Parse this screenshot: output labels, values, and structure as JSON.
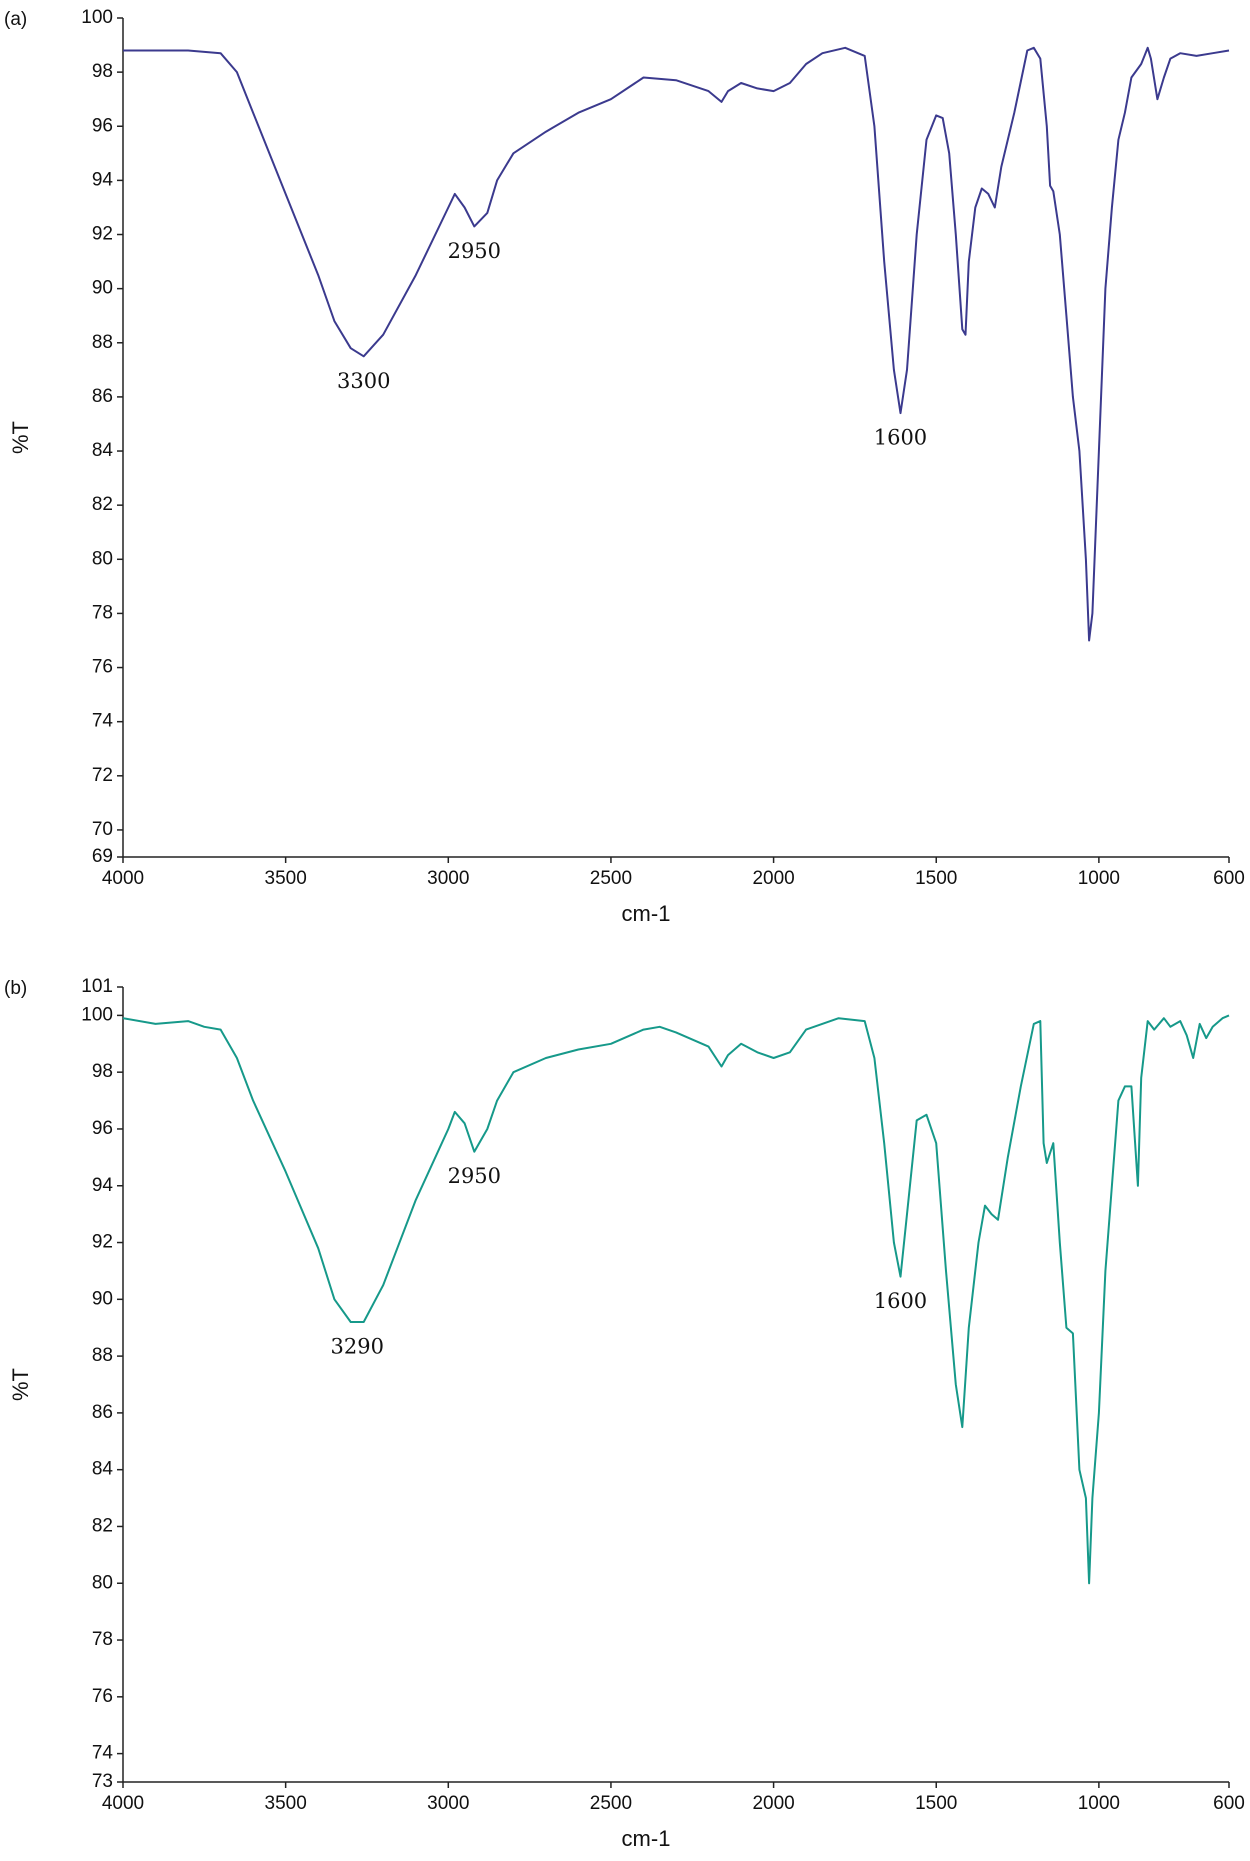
{
  "chart_data": [
    {
      "type": "line",
      "panel": "(a)",
      "ylabel": "%T",
      "xlabel": "cm-1",
      "color": "#3b3a8e",
      "xlim": [
        4000,
        600
      ],
      "xticks": [
        4000,
        3500,
        3000,
        2500,
        2000,
        1500,
        1000,
        600
      ],
      "ylim": [
        69,
        100
      ],
      "yticks": [
        69,
        70,
        72,
        74,
        76,
        78,
        80,
        82,
        84,
        86,
        88,
        90,
        92,
        94,
        96,
        98,
        100
      ],
      "x": [
        4000,
        3800,
        3700,
        3650,
        3600,
        3500,
        3400,
        3350,
        3300,
        3260,
        3200,
        3100,
        3000,
        2980,
        2950,
        2920,
        2880,
        2850,
        2800,
        2700,
        2600,
        2500,
        2400,
        2300,
        2200,
        2160,
        2140,
        2100,
        2050,
        2000,
        1950,
        1900,
        1850,
        1780,
        1720,
        1690,
        1660,
        1630,
        1610,
        1590,
        1560,
        1530,
        1500,
        1480,
        1460,
        1440,
        1420,
        1410,
        1400,
        1380,
        1360,
        1340,
        1320,
        1300,
        1260,
        1220,
        1200,
        1180,
        1160,
        1150,
        1140,
        1120,
        1100,
        1080,
        1060,
        1040,
        1030,
        1020,
        1000,
        980,
        960,
        940,
        920,
        900,
        870,
        850,
        840,
        820,
        800,
        780,
        750,
        700,
        650,
        600
      ],
      "values": [
        98.8,
        98.8,
        98.7,
        98.0,
        96.5,
        93.5,
        90.5,
        88.8,
        87.8,
        87.5,
        88.3,
        90.5,
        93.0,
        93.5,
        93.0,
        92.3,
        92.8,
        94.0,
        95.0,
        95.8,
        96.5,
        97.0,
        97.8,
        97.7,
        97.3,
        96.9,
        97.3,
        97.6,
        97.4,
        97.3,
        97.6,
        98.3,
        98.7,
        98.9,
        98.6,
        96.0,
        91.0,
        87.0,
        85.4,
        87.0,
        92.0,
        95.5,
        96.4,
        96.3,
        95.0,
        92.0,
        88.5,
        88.3,
        91.0,
        93.0,
        93.7,
        93.5,
        93.0,
        94.5,
        96.5,
        98.8,
        98.9,
        98.5,
        96.0,
        93.8,
        93.6,
        92.0,
        89.0,
        86.0,
        84.0,
        80.0,
        77.0,
        78.0,
        84.0,
        90.0,
        93.0,
        95.5,
        96.5,
        97.8,
        98.3,
        98.9,
        98.5,
        97.0,
        97.8,
        98.5,
        98.7,
        98.6,
        98.7,
        98.8
      ],
      "annotations": [
        {
          "label": "3300",
          "x": 3260,
          "y": 87.5
        },
        {
          "label": "2950",
          "x": 2920,
          "y": 92.3
        },
        {
          "label": "1600",
          "x": 1610,
          "y": 85.4
        }
      ]
    },
    {
      "type": "line",
      "panel": "(b)",
      "ylabel": "%T",
      "xlabel": "cm-1",
      "color": "#16998a",
      "xlim": [
        4000,
        600
      ],
      "xticks": [
        4000,
        3500,
        3000,
        2500,
        2000,
        1500,
        1000,
        600
      ],
      "ylim": [
        73,
        101
      ],
      "yticks": [
        73,
        74,
        76,
        78,
        80,
        82,
        84,
        86,
        88,
        90,
        92,
        94,
        96,
        98,
        100,
        101
      ],
      "x": [
        4000,
        3900,
        3800,
        3750,
        3700,
        3650,
        3600,
        3500,
        3400,
        3350,
        3300,
        3260,
        3200,
        3100,
        3000,
        2980,
        2950,
        2920,
        2880,
        2850,
        2800,
        2700,
        2600,
        2500,
        2400,
        2350,
        2300,
        2200,
        2160,
        2140,
        2100,
        2050,
        2000,
        1950,
        1900,
        1800,
        1720,
        1690,
        1660,
        1630,
        1610,
        1590,
        1560,
        1530,
        1500,
        1470,
        1440,
        1420,
        1400,
        1370,
        1350,
        1330,
        1310,
        1280,
        1240,
        1200,
        1180,
        1170,
        1160,
        1140,
        1120,
        1100,
        1080,
        1060,
        1040,
        1030,
        1020,
        1000,
        980,
        960,
        940,
        920,
        900,
        880,
        870,
        850,
        830,
        800,
        780,
        750,
        730,
        710,
        690,
        670,
        650,
        620,
        600
      ],
      "values": [
        99.9,
        99.7,
        99.8,
        99.6,
        99.5,
        98.5,
        97.0,
        94.5,
        91.8,
        90.0,
        89.2,
        89.2,
        90.5,
        93.5,
        96.0,
        96.6,
        96.2,
        95.2,
        96.0,
        97.0,
        98.0,
        98.5,
        98.8,
        99.0,
        99.5,
        99.6,
        99.4,
        98.9,
        98.2,
        98.6,
        99.0,
        98.7,
        98.5,
        98.7,
        99.5,
        99.9,
        99.8,
        98.5,
        95.5,
        92.0,
        90.8,
        93.0,
        96.3,
        96.5,
        95.5,
        91.0,
        87.0,
        85.5,
        89.0,
        92.0,
        93.3,
        93.0,
        92.8,
        95.0,
        97.5,
        99.7,
        99.8,
        95.5,
        94.8,
        95.5,
        92.0,
        89.0,
        88.8,
        84.0,
        83.0,
        80.0,
        83.0,
        86.0,
        91.0,
        94.0,
        97.0,
        97.5,
        97.5,
        94.0,
        97.8,
        99.8,
        99.5,
        99.9,
        99.6,
        99.8,
        99.3,
        98.5,
        99.7,
        99.2,
        99.6,
        99.9,
        100.0
      ],
      "annotations": [
        {
          "label": "3290",
          "x": 3280,
          "y": 89.2
        },
        {
          "label": "2950",
          "x": 2920,
          "y": 95.2
        },
        {
          "label": "1600",
          "x": 1610,
          "y": 90.8
        }
      ]
    }
  ]
}
